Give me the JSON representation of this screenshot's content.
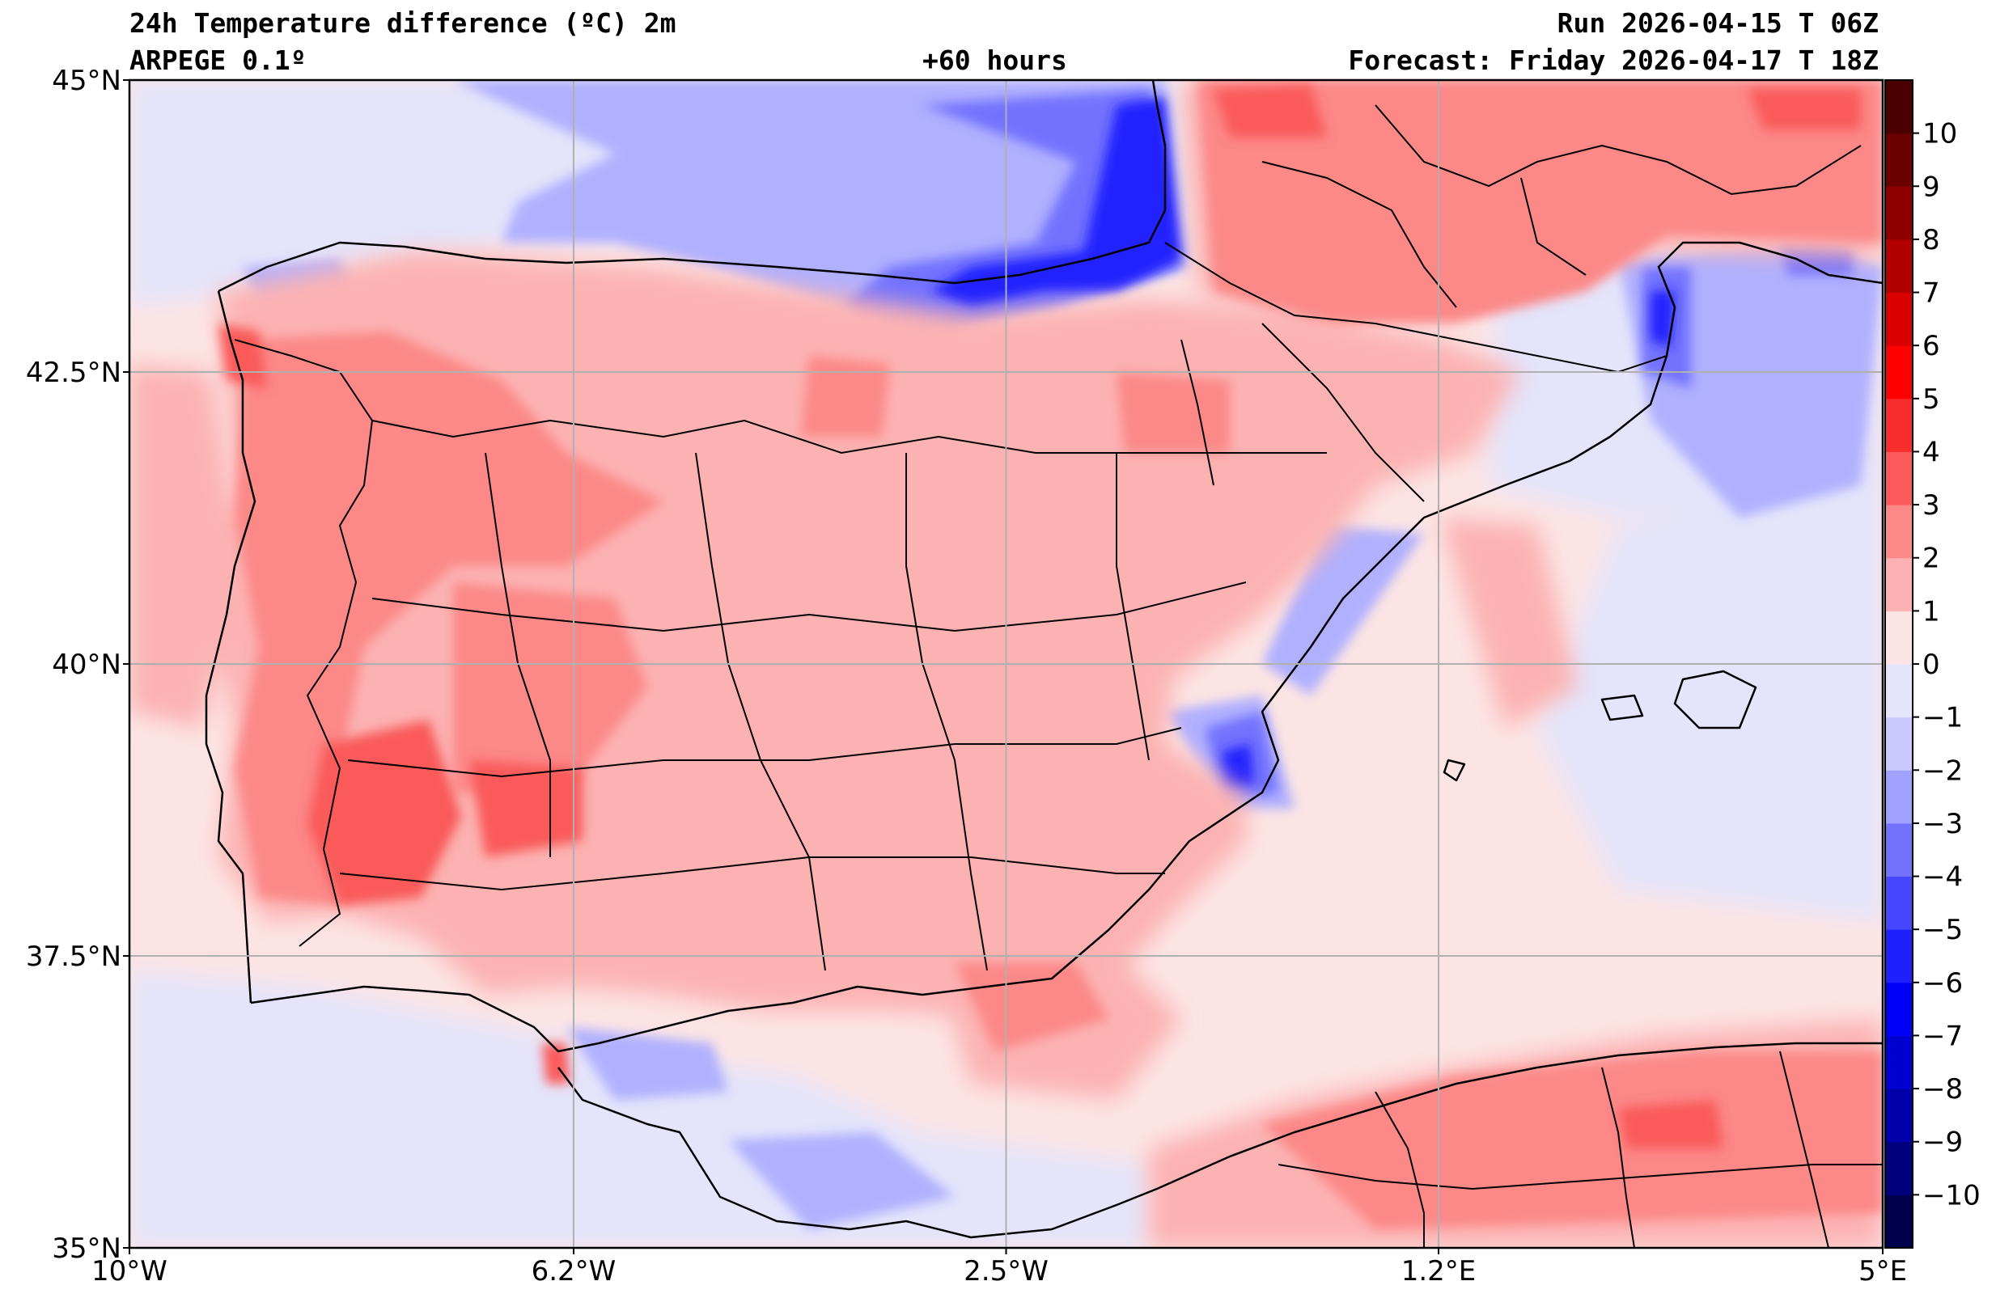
{
  "header": {
    "title": "24h Temperature difference (ºC) 2m",
    "model": "ARPEGE 0.1º",
    "lead_time": "+60 hours",
    "run": "Run 2026-04-15 T 06Z",
    "forecast": "Forecast: Friday 2026-04-17 T 18Z"
  },
  "map": {
    "region": "Iberian Peninsula",
    "lon_range": [
      -10,
      5
    ],
    "lat_range": [
      35,
      45
    ],
    "lon_ticks": [
      {
        "value": -10,
        "label": "10°W"
      },
      {
        "value": -6.2,
        "label": "6.2°W"
      },
      {
        "value": -2.5,
        "label": "2.5°W"
      },
      {
        "value": 1.2,
        "label": "1.2°E"
      },
      {
        "value": 5,
        "label": "5°E"
      }
    ],
    "lat_ticks": [
      {
        "value": 45,
        "label": "45°N"
      },
      {
        "value": 42.5,
        "label": "42.5°N"
      },
      {
        "value": 40,
        "label": "40°N"
      },
      {
        "value": 37.5,
        "label": "37.5°N"
      },
      {
        "value": 35,
        "label": "35°N"
      }
    ],
    "grid": true
  },
  "colorbar": {
    "min": -11,
    "max": 11,
    "tick_values": [
      -10,
      -9,
      -8,
      -7,
      -6,
      -5,
      -4,
      -3,
      -2,
      -1,
      0,
      1,
      2,
      3,
      4,
      5,
      6,
      7,
      8,
      9,
      10
    ],
    "tick_labels": [
      "−10",
      "−9",
      "−8",
      "−7",
      "−6",
      "−5",
      "−4",
      "−3",
      "−2",
      "−1",
      "0",
      "1",
      "2",
      "3",
      "4",
      "5",
      "6",
      "7",
      "8",
      "9",
      "10"
    ],
    "colors": [
      "#00004c",
      "#00007c",
      "#0000a8",
      "#0000d0",
      "#0000f6",
      "#2020ff",
      "#4646ff",
      "#7272ff",
      "#a0a0ff",
      "#c9c9ff",
      "#e4e4fb",
      "#fce4e4",
      "#fcb2b2",
      "#fc8888",
      "#fa5a5a",
      "#f82d2d",
      "#ff0000",
      "#d80000",
      "#b20000",
      "#8e0000",
      "#6a0000",
      "#4a0000"
    ]
  },
  "field_colors": {
    "sea_base": "#fce4e4",
    "cool_light": "#e4e4fb",
    "cool_mid": "#b0b0ff",
    "cool_strong": "#7272ff",
    "cool_deep": "#2020ff",
    "warm_light": "#fcb2b2",
    "warm_mid": "#fc8888",
    "warm_strong": "#fa5a5a"
  }
}
